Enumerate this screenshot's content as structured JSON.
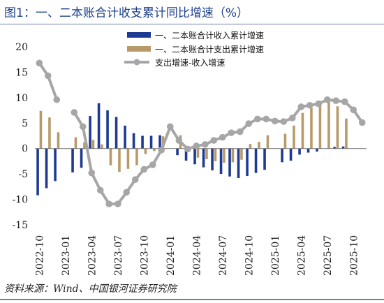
{
  "title": "图1：一、二本账合计收支累计同比增速（%）",
  "source": "资料来源：Wind、中国银河证券研究院",
  "chart_data": {
    "type": "bar",
    "ylim": [
      -15,
      20
    ],
    "yticks": [
      "-15",
      "-10",
      "-5",
      "0",
      "5",
      "10",
      "15",
      "20"
    ],
    "x_tick_labels": [
      "2022-10",
      "2023-01",
      "2023-04",
      "2023-07",
      "2023-10",
      "2024-01",
      "2024-04",
      "2024-07",
      "2024-10",
      "2025-01",
      "2025-04",
      "2025-07",
      "2025-10"
    ],
    "grid": false,
    "legend_position": "top",
    "series": [
      {
        "name": "一、二本账合计收入累计增速",
        "kind": "bar",
        "color": "#1f3a93",
        "values": [
          -9.2,
          -7.8,
          -6.4,
          null,
          -4.7,
          -3.8,
          6.4,
          8.9,
          7.5,
          6.2,
          4.5,
          3.0,
          2.5,
          2.5,
          2.6,
          null,
          -1.3,
          -2.4,
          -3.1,
          -3.7,
          -4.3,
          -5.0,
          -5.5,
          -5.8,
          -5.4,
          -4.8,
          -4.2,
          null,
          -2.7,
          -2.4,
          -1.2,
          -0.8,
          -0.6,
          null,
          0.3,
          0.4
        ]
      },
      {
        "name": "一、二本账合计支出累计增速",
        "kind": "bar",
        "color": "#b89a6a",
        "values": [
          7.4,
          6.1,
          3.2,
          null,
          2.2,
          1.2,
          1.7,
          0.8,
          -3.3,
          -4.6,
          -4.0,
          -3.3,
          -1.1,
          -0.5,
          2.4,
          null,
          2.6,
          -0.6,
          -1.8,
          -2.1,
          -2.5,
          -2.8,
          -2.7,
          -2.2,
          0.9,
          1.3,
          2.6,
          null,
          2.9,
          4.5,
          7.0,
          8.0,
          9.3,
          9.4,
          8.3,
          5.9
        ]
      },
      {
        "name": "支出增速-收入增速",
        "kind": "line",
        "color": "#a6a6a6",
        "values": [
          16.8,
          14.3,
          9.6,
          null,
          7.1,
          4.3,
          -4.8,
          -8.2,
          -10.9,
          -10.9,
          -8.6,
          -6.1,
          -4.1,
          -3.2,
          -0.3,
          4.3,
          1.6,
          -0.1,
          0.5,
          0.8,
          1.6,
          2.2,
          3.1,
          3.3,
          4.9,
          5.8,
          5.8,
          5.4,
          5.3,
          6.0,
          8.2,
          8.5,
          8.8,
          9.6,
          9.4,
          9.2,
          7.6,
          5.1
        ]
      }
    ],
    "line_x": [
      0,
      1,
      2,
      null,
      4,
      5,
      6,
      7,
      8,
      9,
      10,
      11,
      12,
      13,
      14,
      15,
      16,
      17,
      18,
      19,
      20,
      21,
      22,
      23,
      24,
      25,
      26,
      27,
      28,
      29,
      30,
      31,
      32,
      33,
      34,
      35,
      36,
      37
    ]
  }
}
